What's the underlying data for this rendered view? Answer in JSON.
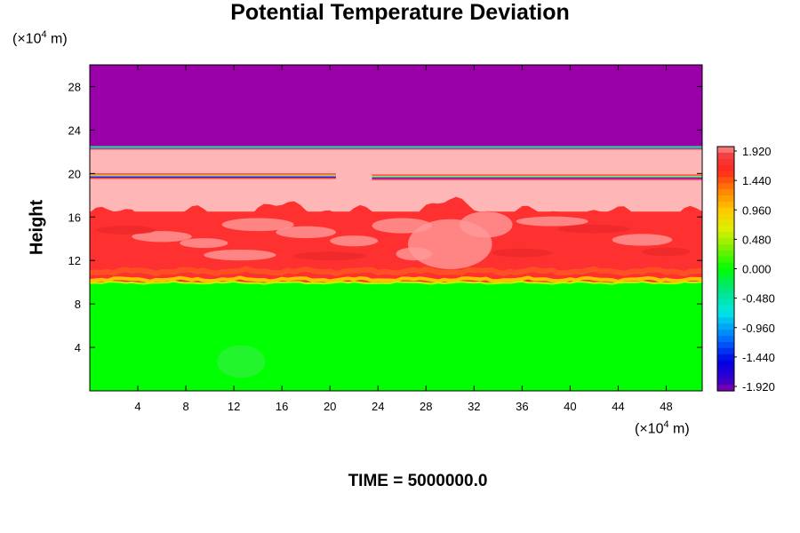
{
  "chart_data": {
    "type": "heatmap",
    "title": "Potential Temperature Deviation",
    "ylabel": "Height",
    "xlabel": "",
    "x_unit": {
      "prefix": "(×10",
      "exp": "4",
      "suffix": " m)"
    },
    "y_unit": {
      "prefix": "(×10",
      "exp": "4",
      "suffix": " m)"
    },
    "xlim": [
      0,
      51
    ],
    "ylim": [
      0,
      30
    ],
    "x_ticks": [
      "4",
      "8",
      "12",
      "16",
      "20",
      "24",
      "28",
      "32",
      "36",
      "40",
      "44",
      "48"
    ],
    "y_ticks": [
      "4",
      "8",
      "12",
      "16",
      "20",
      "24",
      "28"
    ],
    "colorbar": {
      "labels": [
        "1.920",
        "1.440",
        "0.960",
        "0.480",
        "0.000",
        "-0.480",
        "-0.960",
        "-1.440",
        "-1.920"
      ],
      "range": [
        -1.92,
        1.92
      ]
    },
    "layers": [
      {
        "y_from": 22.5,
        "y_to": 30,
        "value": -1.92,
        "description_value": "minimum"
      },
      {
        "y_from": 16.5,
        "y_to": 22.5,
        "value": 1.92
      },
      {
        "y_from": 10,
        "y_to": 16.5,
        "value": 1.6
      },
      {
        "y_from": 0,
        "y_to": 10,
        "value": 0.0
      }
    ],
    "footer": "TIME = 5000000.0"
  }
}
